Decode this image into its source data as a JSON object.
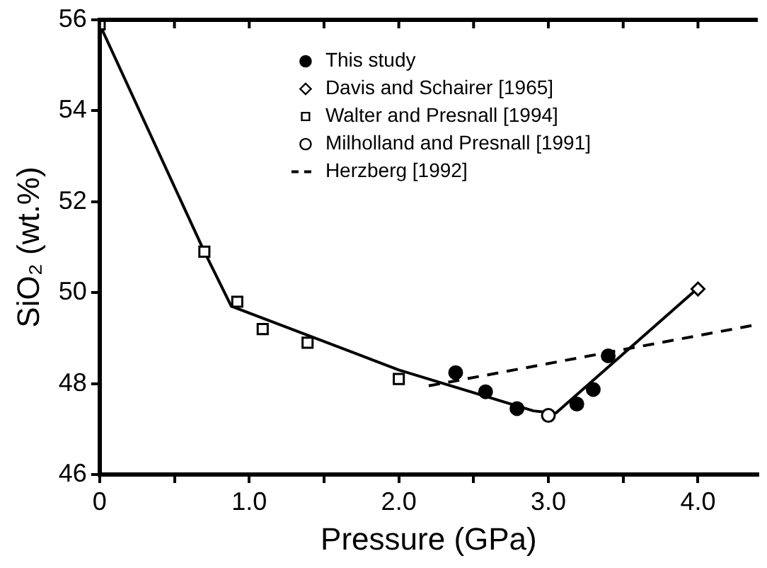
{
  "chart_data": {
    "type": "scatter",
    "xlabel": "Pressure (GPa)",
    "ylabel": "SiO₂ (wt.%)",
    "xlim": [
      0,
      4.4
    ],
    "ylim": [
      46,
      56
    ],
    "xticks": [
      {
        "value": 0,
        "label": "0"
      },
      {
        "value": 0.5,
        "label": null
      },
      {
        "value": 1,
        "label": "1.0"
      },
      {
        "value": 1.5,
        "label": null
      },
      {
        "value": 2,
        "label": "2.0"
      },
      {
        "value": 2.5,
        "label": null
      },
      {
        "value": 3,
        "label": "3.0"
      },
      {
        "value": 3.5,
        "label": null
      },
      {
        "value": 4,
        "label": "4.0"
      }
    ],
    "yticks": [
      46,
      48,
      50,
      52,
      54,
      56
    ],
    "grid": false,
    "legend": "top",
    "series": [
      {
        "name": "This study",
        "color": "#000000",
        "marker": "circle",
        "x": [
          2.38,
          2.58,
          2.79,
          3.19,
          3.3,
          3.4
        ],
        "values": [
          48.24,
          47.82,
          47.45,
          47.55,
          47.87,
          48.61
        ]
      },
      {
        "name": "Davis and Schairer [1965]",
        "color": "#000000",
        "marker": "diamond",
        "x": [
          4.0
        ],
        "values": [
          50.08
        ]
      },
      {
        "name": "Walter and Presnall [1994]",
        "color": "#000000",
        "marker": "square",
        "x": [
          0,
          0.7,
          0.92,
          1.09,
          1.39,
          2.0
        ],
        "values": [
          55.9,
          50.9,
          49.8,
          49.2,
          48.9,
          48.1
        ]
      },
      {
        "name": "Milholland and Presnall [1991]",
        "color": "#000000",
        "marker": "circle",
        "x": [
          3.0
        ],
        "values": [
          47.3
        ]
      },
      {
        "name": "Herzberg [1992]",
        "type": "line",
        "color": "#000000",
        "line_style": "dashed",
        "marker": "none",
        "x": [
          2.2,
          4.4
        ],
        "values": [
          47.95,
          49.3
        ]
      },
      {
        "type": "line",
        "color": "#000000",
        "line_style": "solid",
        "marker": "none",
        "x": [
          0,
          0.7,
          0.88,
          2.0,
          2.9,
          3.05,
          4.0
        ],
        "values": [
          55.9,
          50.9,
          49.7,
          48.3,
          47.4,
          47.35,
          50.1
        ]
      }
    ]
  }
}
